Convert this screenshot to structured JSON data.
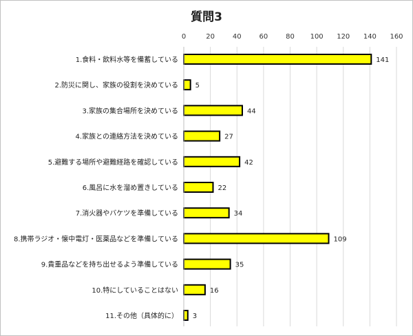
{
  "chart_data": {
    "type": "bar",
    "orientation": "horizontal",
    "title": "質問3",
    "categories": [
      "1.食料・飲料水等を備蓄している",
      "2.防災に関し、家族の役割を決めている",
      "3.家族の集合場所を決めている",
      "4.家族との連絡方法を決めている",
      "5.避難する場所や避難経路を確認している",
      "6.風呂に水を溜め置きしている",
      "7.消火器やバケツを準備している",
      "8.携帯ラジオ・懐中電灯・医薬品などを準備している",
      "9.貴重品などを持ち出せるよう準備している",
      "10.特にしていることはない",
      "11.その他（具体的に）"
    ],
    "values": [
      141,
      5,
      44,
      27,
      42,
      22,
      34,
      109,
      35,
      16,
      3
    ],
    "xlim": [
      0,
      160
    ],
    "xticks": [
      0,
      20,
      40,
      60,
      80,
      100,
      120,
      140,
      160
    ],
    "x_axis_position": "top",
    "grid": true,
    "data_labels": true,
    "colors": {
      "bar_fill": "#ffff00",
      "bar_stroke": "#000000",
      "grid": "#d9d9d9"
    }
  }
}
